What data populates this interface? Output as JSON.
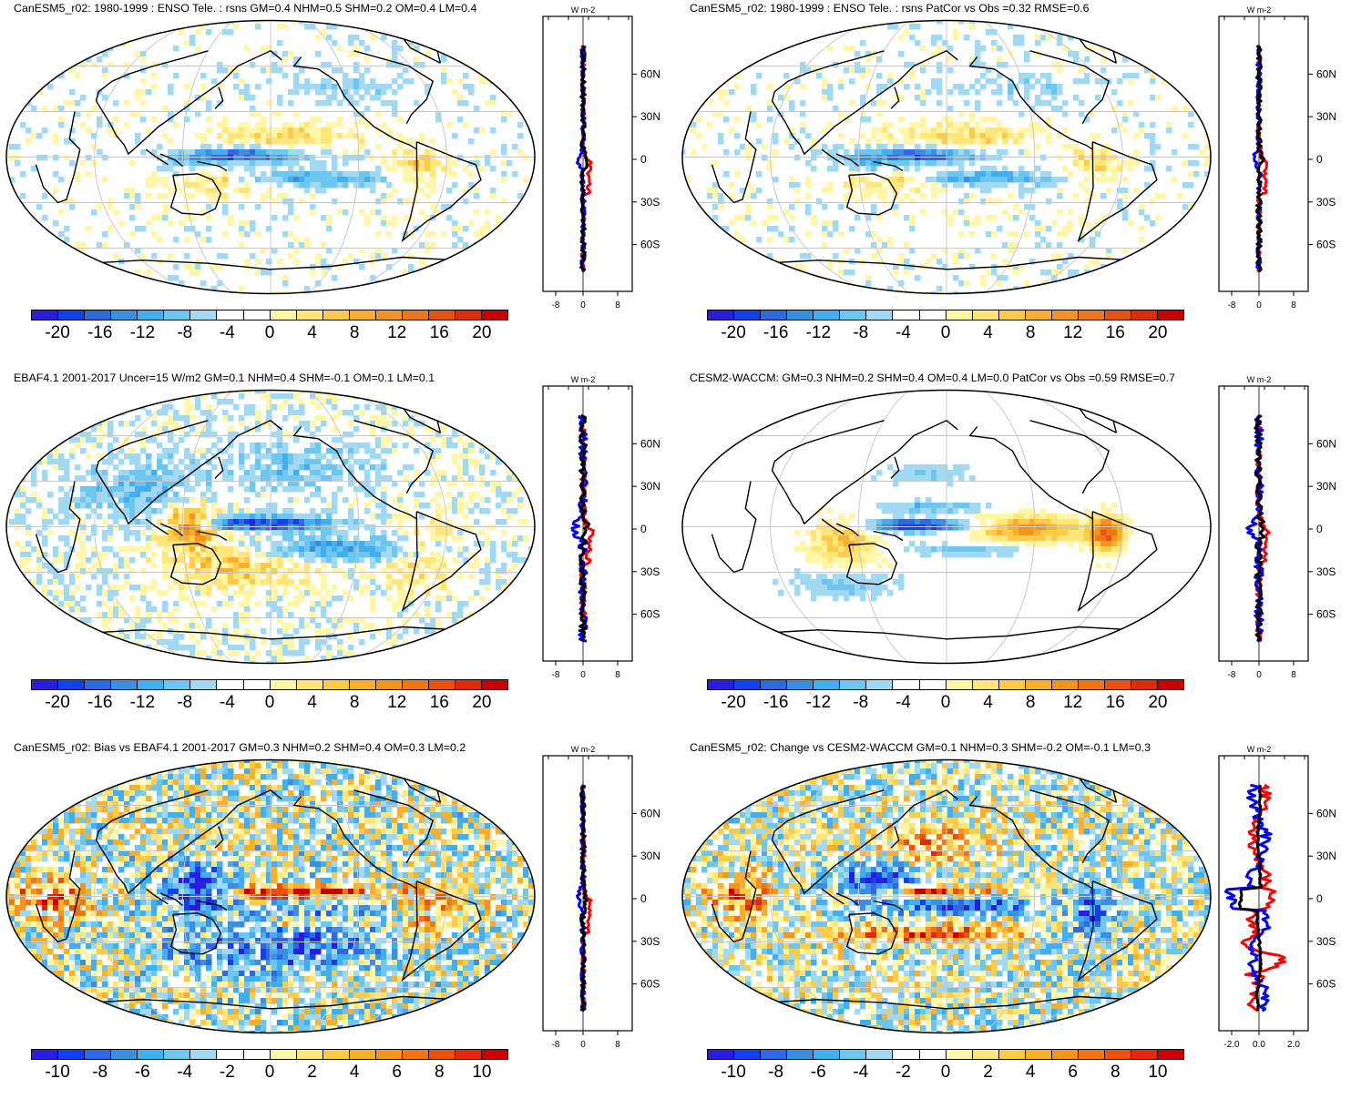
{
  "panels": [
    {
      "title": "CanESM5_r02: 1980-1999 : ENSO Tele. : rsns GM=0.4 NHM=0.5 SHM=0.2 OM=0.4 LM=0.4",
      "colorbar_labels": [
        "-20",
        "-16",
        "-12",
        "-8",
        "-4",
        "0",
        "4",
        "8",
        "12",
        "16",
        "20"
      ],
      "profile_xticks": [
        "-8",
        "0",
        "8"
      ],
      "profile_range": [
        -8,
        8
      ],
      "field": "tele"
    },
    {
      "title": "CanESM5_r02: 1980-1999 : ENSO Tele. : rsns PatCor vs Obs =0.32 RMSE=0.6",
      "colorbar_labels": [
        "-20",
        "-16",
        "-12",
        "-8",
        "-4",
        "0",
        "4",
        "8",
        "12",
        "16",
        "20"
      ],
      "profile_xticks": [
        "-8",
        "0",
        "8"
      ],
      "profile_range": [
        -8,
        8
      ],
      "field": "tele"
    },
    {
      "title": "EBAF4.1 2001-2017 Uncer=15 W/m2 GM=0.1 NHM=0.4 SHM=-0.1 OM=0.1 LM=0.1",
      "colorbar_labels": [
        "-20",
        "-16",
        "-12",
        "-8",
        "-4",
        "0",
        "4",
        "8",
        "12",
        "16",
        "20"
      ],
      "profile_xticks": [
        "-8",
        "0",
        "8"
      ],
      "profile_range": [
        -8,
        8
      ],
      "field": "obs"
    },
    {
      "title": "CESM2-WACCM: GM=0.3 NHM=0.2 SHM=0.4 OM=0.4 LM=0.0 PatCor vs Obs =0.59 RMSE=0.7",
      "colorbar_labels": [
        "-20",
        "-16",
        "-12",
        "-8",
        "-4",
        "0",
        "4",
        "8",
        "12",
        "16",
        "20"
      ],
      "profile_xticks": [
        "-8",
        "0",
        "8"
      ],
      "profile_range": [
        -8,
        8
      ],
      "field": "cesm"
    },
    {
      "title": "CanESM5_r02: Bias vs EBAF4.1 2001-2017 GM=0.3 NHM=0.2 SHM=0.4 OM=0.3 LM=0.2",
      "colorbar_labels": [
        "-10",
        "-8",
        "-6",
        "-4",
        "-2",
        "0",
        "2",
        "4",
        "6",
        "8",
        "10"
      ],
      "profile_xticks": [
        "-8",
        "0",
        "8"
      ],
      "profile_range": [
        -8,
        8
      ],
      "field": "bias"
    },
    {
      "title": "CanESM5_r02: Change vs CESM2-WACCM GM=0.1 NHM=0.3 SHM=-0.2 OM=-0.1 LM=0.3",
      "colorbar_labels": [
        "-10",
        "-8",
        "-6",
        "-4",
        "-2",
        "0",
        "2",
        "4",
        "6",
        "8",
        "10"
      ],
      "profile_xticks": [
        "-2.0",
        "0.0",
        "2.0"
      ],
      "profile_range": [
        -2.0,
        2.0
      ],
      "field": "change"
    }
  ],
  "profile_unit": "W m-2",
  "lat_labels": [
    "60N",
    "30N",
    "0",
    "30S",
    "60S"
  ],
  "colors": {
    "palette": [
      "#2a1de0",
      "#1240ef",
      "#2f68e0",
      "#3b8ee0",
      "#41aef0",
      "#6cc6ee",
      "#a2d9f2",
      "#ffffff",
      "#ffffff",
      "#fff6a8",
      "#ffe57a",
      "#fccb4a",
      "#f8b02c",
      "#f49420",
      "#ee7616",
      "#e8520e",
      "#e02a0c",
      "#c80000"
    ],
    "profile_lines": [
      "#ff0000",
      "#0000ff",
      "#000000"
    ],
    "coast": "#000000",
    "graticule": "#c8c8c8"
  }
}
